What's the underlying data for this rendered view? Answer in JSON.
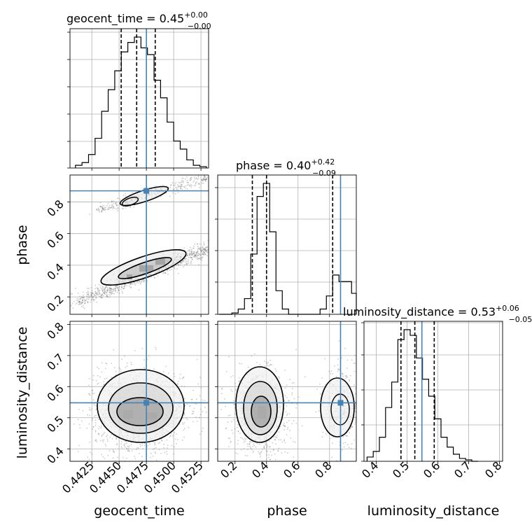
{
  "chart_data": {
    "type": "corner",
    "parameters": [
      "geocent_time",
      "phase",
      "luminosity_distance"
    ],
    "truth": {
      "geocent_time": 0.4475,
      "phase": 0.87,
      "luminosity_distance": 0.548
    },
    "accent_color": "#4682b4",
    "titles": {
      "geocent_time": {
        "label": "geocent_time = 0.45",
        "sup": "+0.00",
        "sub": "−0.00"
      },
      "phase": {
        "label": "phase = 0.40",
        "sup": "+0.42",
        "sub": "−0.09"
      },
      "luminosity_distance": {
        "label": "luminosity_distance = 0.53",
        "sup": "+0.06",
        "sub": "−0.05"
      }
    },
    "axis_labels": {
      "geocent_time": "geocent_time",
      "phase": "phase",
      "luminosity_distance": "luminosity_distance"
    },
    "ranges": {
      "geocent_time": [
        0.4405,
        0.4532
      ],
      "phase": [
        0.09,
        0.97
      ],
      "luminosity_distance": [
        0.36,
        0.81
      ]
    },
    "ticks": {
      "geocent_time": [
        "0.4425",
        "0.4450",
        "0.4475",
        "0.4500",
        "0.4525"
      ],
      "phase_x": [
        "0.2",
        "0.4",
        "0.6",
        "0.8"
      ],
      "phase_y": [
        "0.2",
        "0.4",
        "0.6",
        "0.8"
      ],
      "luminosity_distance_x": [
        "0.4",
        "0.5",
        "0.6",
        "0.7",
        "0.8"
      ],
      "luminosity_distance_y": [
        "0.4",
        "0.5",
        "0.6",
        "0.7",
        "0.8"
      ]
    },
    "quantiles": {
      "geocent_time": [
        0.44519,
        0.44661,
        0.44831
      ],
      "phase": [
        0.31,
        0.4,
        0.82
      ],
      "luminosity_distance": [
        0.48,
        0.525,
        0.588
      ]
    },
    "hist_geocent_time": {
      "edges": [
        0.441,
        0.4416,
        0.4422,
        0.4428,
        0.4434,
        0.444,
        0.4446,
        0.4452,
        0.4458,
        0.4464,
        0.447,
        0.4476,
        0.4482,
        0.4488,
        0.4494,
        0.45,
        0.4506,
        0.4512,
        0.4518,
        0.4524,
        0.453
      ],
      "counts": [
        0.02,
        0.04,
        0.1,
        0.22,
        0.42,
        0.58,
        0.72,
        0.86,
        0.93,
        0.97,
        0.89,
        0.84,
        0.65,
        0.52,
        0.34,
        0.2,
        0.14,
        0.06,
        0.02,
        0.01
      ]
    },
    "hist_phase": {
      "edges": [
        0.1,
        0.14,
        0.18,
        0.22,
        0.26,
        0.3,
        0.34,
        0.38,
        0.42,
        0.46,
        0.5,
        0.54,
        0.58,
        0.62,
        0.66,
        0.7,
        0.74,
        0.78,
        0.82,
        0.86,
        0.9,
        0.94,
        0.97
      ],
      "counts": [
        0.0,
        0.0,
        0.01,
        0.04,
        0.12,
        0.46,
        0.9,
        1.0,
        0.63,
        0.18,
        0.04,
        0.0,
        0.0,
        0.0,
        0.0,
        0.0,
        0.04,
        0.14,
        0.3,
        0.25,
        0.25,
        0.16
      ]
    },
    "hist_luminosity_distance": {
      "edges": [
        0.37,
        0.39,
        0.41,
        0.43,
        0.45,
        0.47,
        0.49,
        0.51,
        0.53,
        0.55,
        0.57,
        0.59,
        0.61,
        0.63,
        0.65,
        0.67,
        0.69,
        0.71,
        0.73
      ],
      "counts": [
        0.03,
        0.07,
        0.17,
        0.38,
        0.56,
        0.86,
        0.93,
        0.89,
        0.73,
        0.58,
        0.46,
        0.3,
        0.17,
        0.1,
        0.05,
        0.02,
        0.01,
        0.0
      ]
    }
  }
}
